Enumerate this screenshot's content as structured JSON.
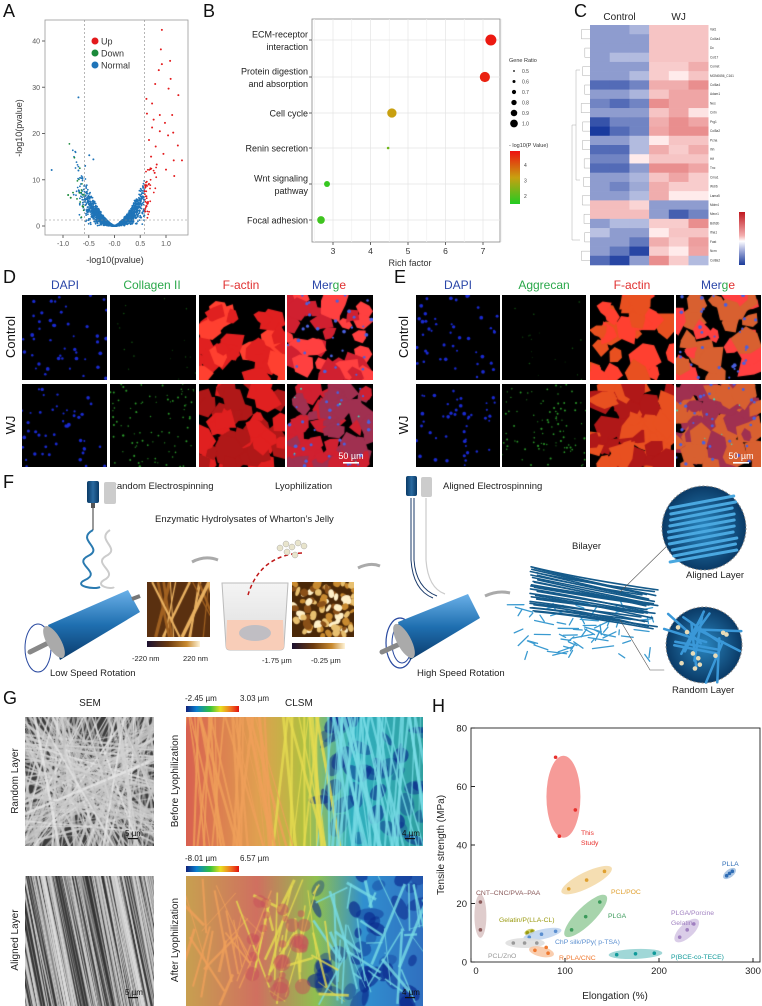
{
  "panel_labels": {
    "A": "A",
    "B": "B",
    "C": "C",
    "D": "D",
    "E": "E",
    "F": "F",
    "G": "G",
    "H": "H"
  },
  "panelD": {
    "headers": [
      "DAPI",
      "Collagen II",
      "F-actin"
    ],
    "merge_parts": [
      "Mer",
      "g",
      "e"
    ],
    "rows": [
      "Control",
      "WJ"
    ],
    "scale_bar": "50 µm"
  },
  "panelE": {
    "headers": [
      "DAPI",
      "Aggrecan",
      "F-actin"
    ],
    "merge_parts": [
      "Mer",
      "g",
      "e"
    ],
    "rows": [
      "Control",
      "WJ"
    ],
    "scale_bar": "50 µm"
  },
  "panelF": {
    "random_electrospinning": "Random Electrospinning",
    "lyophilization": "Lyophilization",
    "aligned_electrospinning": "Aligned Electrospinning",
    "enzymatic": "Enzymatic Hydrolysates of Wharton’s Jelly",
    "low_speed": "Low Speed Rotation",
    "high_speed": "High Speed Rotation",
    "afm1_min": "-220 nm",
    "afm1_max": "220 nm",
    "afm2_min": "-1.75 µm",
    "afm2_max": "-0.25 µm",
    "bilayer": "Bilayer",
    "aligned_layer": "Aligned Layer",
    "random_layer": "Random Layer"
  },
  "panelG": {
    "sem": "SEM",
    "clsm": "CLSM",
    "row_random": "Random Layer",
    "row_aligned": "Aligned Layer",
    "before": "Before Lyophilization",
    "after": "After Lyophilization",
    "before_min": "-2.45 µm",
    "before_max": "3.03 µm",
    "after_min": "-8.01 µm",
    "after_max": "6.57 µm",
    "sem_scale": "5 µm",
    "clsm_scale": "4 µm"
  },
  "colors": {
    "up": "#e31a1c",
    "down": "#1a8a3a",
    "normal": "#1f74b8",
    "dapi": "#2a46a8",
    "green": "#2aa84a",
    "red": "#e03030"
  },
  "chart_data": [
    {
      "id": "A",
      "type": "scatter",
      "title": "",
      "xlabel": "-log10(pvalue)",
      "ylabel": "-log10(pvalue)",
      "xlim": [
        -1.38,
        1.4
      ],
      "ylim": [
        -2,
        44
      ],
      "xticks": [
        -1.0,
        -0.5,
        0.0,
        0.5,
        1.0
      ],
      "xtick_labels": [
        "-1.0",
        "-0.5",
        "-0.0",
        "0.5",
        "1.0"
      ],
      "yticks": [
        0,
        10,
        20,
        30,
        40
      ],
      "ytick_labels": [
        "0",
        "10",
        "20",
        "30",
        "40"
      ],
      "thresholds": {
        "x": [
          -0.58,
          0.58
        ],
        "y": 1.3
      },
      "legend": [
        {
          "name": "Up",
          "color": "#e31a1c"
        },
        {
          "name": "Down",
          "color": "#1a8a3a"
        },
        {
          "name": "Normal",
          "color": "#1f74b8"
        }
      ],
      "legend_position": "top-center",
      "highlighted_points": [
        [
          0.92,
          42.4,
          "Up"
        ],
        [
          0.9,
          38.2,
          "Up"
        ],
        [
          0.92,
          35.0,
          "Up"
        ],
        [
          1.08,
          35.7,
          "Up"
        ],
        [
          0.86,
          33.7,
          "Up"
        ],
        [
          1.09,
          31.8,
          "Up"
        ],
        [
          0.79,
          30.7,
          "Up"
        ],
        [
          1.05,
          29.7,
          "Up"
        ],
        [
          1.24,
          28.3,
          "Up"
        ],
        [
          0.62,
          27.5,
          "Up"
        ],
        [
          0.73,
          26.5,
          "Up"
        ],
        [
          0.63,
          24.3,
          "Up"
        ],
        [
          0.88,
          24.0,
          "Up"
        ],
        [
          1.12,
          24.0,
          "Up"
        ],
        [
          0.76,
          23.0,
          "Up"
        ],
        [
          0.98,
          22.3,
          "Up"
        ],
        [
          0.73,
          21.3,
          "Up"
        ],
        [
          0.88,
          20.5,
          "Up"
        ],
        [
          1.04,
          19.6,
          "Up"
        ],
        [
          1.14,
          20.2,
          "Up"
        ],
        [
          0.67,
          18.6,
          "Up"
        ],
        [
          1.23,
          17.4,
          "Up"
        ],
        [
          0.8,
          17.2,
          "Up"
        ],
        [
          0.71,
          15.0,
          "Up"
        ],
        [
          0.95,
          15.6,
          "Up"
        ],
        [
          1.31,
          14.2,
          "Up"
        ],
        [
          1.15,
          14.2,
          "Up"
        ],
        [
          0.82,
          13.3,
          "Up"
        ],
        [
          1.0,
          12.2,
          "Up"
        ],
        [
          1.16,
          10.8,
          "Up"
        ],
        [
          0.78,
          11.5,
          "Up"
        ],
        [
          -0.7,
          27.8,
          "Normal"
        ],
        [
          -1.22,
          12.1,
          "Normal"
        ],
        [
          -0.7,
          12.0,
          "Normal"
        ],
        [
          -0.49,
          15.3,
          "Normal"
        ],
        [
          -0.41,
          14.4,
          "Normal"
        ],
        [
          -0.57,
          13.0,
          "Normal"
        ],
        [
          -0.9,
          6.7,
          "Down"
        ],
        [
          -0.85,
          6.1,
          "Down"
        ],
        [
          -0.68,
          7.2,
          "Down"
        ],
        [
          -0.62,
          4.3,
          "Down"
        ]
      ]
    },
    {
      "id": "B",
      "type": "scatter",
      "title": "",
      "xlabel": "Rich factor",
      "ylabel": "",
      "xlim": [
        2.45,
        7.45
      ],
      "xticks": [
        3,
        4,
        5,
        6,
        7
      ],
      "xtick_labels": [
        "3",
        "4",
        "5",
        "6",
        "7"
      ],
      "categories": [
        {
          "name": "ECM-receptor interaction",
          "lines": [
            "ECM-receptor",
            "interaction"
          ],
          "rich_factor": 7.21,
          "gene_ratio": 1.0,
          "neg_log10_p": 4.8
        },
        {
          "name": "Protein digestion and absorption",
          "lines": [
            "Protein digestion",
            "and absorption"
          ],
          "rich_factor": 7.05,
          "gene_ratio": 0.95,
          "neg_log10_p": 4.7
        },
        {
          "name": "Cell cycle",
          "lines": [
            "Cell cycle"
          ],
          "rich_factor": 4.57,
          "gene_ratio": 0.9,
          "neg_log10_p": 3.2
        },
        {
          "name": "Renin secretion",
          "lines": [
            "Renin secretion"
          ],
          "rich_factor": 4.47,
          "gene_ratio": 0.5,
          "neg_log10_p": 2.3
        },
        {
          "name": "Wnt signaling pathway",
          "lines": [
            "Wnt signaling",
            "pathway"
          ],
          "rich_factor": 2.84,
          "gene_ratio": 0.7,
          "neg_log10_p": 1.7
        },
        {
          "name": "Focal adhesion",
          "lines": [
            "Focal adhesion"
          ],
          "rich_factor": 2.68,
          "gene_ratio": 0.8,
          "neg_log10_p": 1.8
        }
      ],
      "size_legend": {
        "title": "Gene Ratio",
        "values": [
          0.5,
          0.6,
          0.7,
          0.8,
          0.9,
          1.0
        ],
        "labels": [
          "0.5",
          "0.6",
          "0.7",
          "0.8",
          "0.9",
          "1.0"
        ]
      },
      "color_legend": {
        "title": "- log10(P Value)",
        "ticks": [
          4,
          3,
          2
        ],
        "tick_labels": [
          "4",
          "3",
          "2"
        ],
        "range": [
          1.5,
          4.9
        ],
        "colors": [
          "#22cc22",
          "#c8a010",
          "#ee1111"
        ]
      },
      "grid": true,
      "legend_position": "right"
    },
    {
      "id": "C",
      "type": "heatmap",
      "groups": [
        "Control",
        "WJ"
      ],
      "columns_per_group": 3,
      "genes": [
        "Vat1",
        "Col4a4",
        "Dc",
        "Col17",
        "Comet",
        "MGN0656_C161",
        "Col6a4",
        "Adam1",
        "Nes",
        "Cntn",
        "Prg1",
        "Col5a2",
        "Pcna",
        "Ihh",
        "Hif",
        "Tnc",
        "Cma1",
        "Wdr6",
        "Lama5",
        "Mdm4",
        "Mecr1",
        "Bdh3b",
        "Ifna1",
        "Fast",
        "Ncrn",
        "Col8a2"
      ],
      "values": [
        [
          -1,
          -1,
          -0.6,
          0.5,
          0.5,
          0.5
        ],
        [
          -1,
          -1,
          -1,
          0.5,
          0.5,
          0.5
        ],
        [
          -1,
          -1,
          -1,
          0.5,
          0.5,
          0.5
        ],
        [
          -1,
          -0.5,
          -0.5,
          0.5,
          0.5,
          0.5
        ],
        [
          -1,
          -1,
          -1,
          0.4,
          0.4,
          0.8
        ],
        [
          -1,
          -1,
          -0.5,
          0.4,
          0,
          0.5
        ],
        [
          -1.8,
          -1.8,
          -1.4,
          0.8,
          0.8,
          1.2
        ],
        [
          -1,
          -1,
          -0.6,
          0.5,
          0.9,
          0.9
        ],
        [
          -1.4,
          -1.8,
          -1.4,
          1.2,
          0.9,
          0.9
        ],
        [
          -1,
          -1,
          -1,
          0.5,
          0.9,
          0.1
        ],
        [
          -2.2,
          -1.4,
          -1.4,
          0.8,
          1.2,
          0.9
        ],
        [
          -2.6,
          -1.8,
          -1.4,
          0.9,
          1.2,
          1.2
        ],
        [
          -1,
          -1,
          -0.5,
          0,
          0.5,
          0.5
        ],
        [
          -1.8,
          -1.8,
          -0.5,
          0.8,
          0.4,
          0.8
        ],
        [
          -1.4,
          -1.4,
          0,
          0.5,
          0.5,
          0.5
        ],
        [
          -1.8,
          -1.8,
          -1,
          1.2,
          1.2,
          0.9
        ],
        [
          -1,
          -1,
          -0.6,
          0.5,
          0.9,
          0.4
        ],
        [
          -1,
          -1.4,
          -0.8,
          0.8,
          0.4,
          0.4
        ],
        [
          -1,
          -1,
          -0.5,
          0.8,
          0,
          0
        ],
        [
          0.6,
          0.6,
          0.3,
          -1,
          -1,
          -1
        ],
        [
          0.6,
          0.6,
          0.6,
          -1,
          -2,
          -1.4
        ],
        [
          -1,
          -0.5,
          -0.5,
          0.4,
          0.4,
          1.2
        ],
        [
          -0.4,
          -1,
          -1,
          0,
          0.5,
          0.5
        ],
        [
          -1,
          -1,
          -1.6,
          0.8,
          0.4,
          1
        ],
        [
          -1,
          -1.6,
          -2.4,
          0.4,
          0,
          0.9
        ],
        [
          -1.8,
          -2.4,
          -1,
          1.2,
          0.4,
          -0.5
        ]
      ],
      "colors": {
        "high": "#d7191c",
        "mid": "#ffffff",
        "low": "#1a3a9a"
      }
    },
    {
      "id": "H",
      "type": "scatter",
      "title": "",
      "xlabel": "Elongation (%)",
      "ylabel": "Tensile strength (MPa)",
      "xlim": [
        0,
        300
      ],
      "ylim": [
        0,
        80
      ],
      "xticks": [
        0,
        100,
        200,
        300
      ],
      "xtick_labels": [
        "0",
        "100",
        "200",
        "300"
      ],
      "yticks": [
        0,
        20,
        40,
        60,
        80
      ],
      "ytick_labels": [
        "0",
        "20",
        "40",
        "60",
        "80"
      ],
      "series": [
        {
          "name": "This Study",
          "lines": [
            "This",
            "Study"
          ],
          "color": "#e8302c",
          "fill": "#f58a86",
          "points": [
            [
              90,
              70
            ],
            [
              111,
              52
            ],
            [
              94,
              43
            ]
          ]
        },
        {
          "name": "PCL/POC",
          "lines": [
            "PCL/POC"
          ],
          "color": "#e0a030",
          "fill": "#f3d8a4",
          "points": [
            [
              104,
              25
            ],
            [
              123,
              28
            ],
            [
              142,
              31
            ]
          ]
        },
        {
          "name": "PLGA",
          "lines": [
            "PLGA"
          ],
          "color": "#3a9a5a",
          "fill": "#98cc9e",
          "points": [
            [
              107,
              11
            ],
            [
              122,
              15.5
            ],
            [
              137,
              20.5
            ]
          ]
        },
        {
          "name": "PLLA",
          "lines": [
            "PLLA"
          ],
          "color": "#2f6db5",
          "fill": "#9dbde0",
          "points": [
            [
              272,
              29.5
            ],
            [
              275,
              30.3
            ],
            [
              278,
              31
            ]
          ]
        },
        {
          "name": "CNT–CNC/PVA–PAA",
          "lines": [
            "CNT–CNC/PVA–PAA"
          ],
          "color": "#8a5a5a",
          "fill": "#d9c3c3",
          "points": [
            [
              10,
              20.5
            ],
            [
              10,
              11
            ]
          ]
        },
        {
          "name": "Gelatin/P(LLA-CL)",
          "lines": [
            "Gelatin/P(LLA-CL)"
          ],
          "color": "#9a9a10",
          "fill": "#c8c850",
          "points": [
            [
              60,
              10
            ],
            [
              65,
              10.5
            ]
          ]
        },
        {
          "name": "ChP silk/PPy( p-TSA)",
          "lines": [
            "ChP silk/PPy( p-TSA)"
          ],
          "color": "#5b8fd0",
          "fill": "#bcd2ee",
          "points": [
            [
              62,
              8.5
            ],
            [
              75,
              9.5
            ],
            [
              90,
              10.5
            ]
          ]
        },
        {
          "name": "PCL/ZnO",
          "lines": [
            "PCL/ZnO"
          ],
          "color": "#999999",
          "fill": "#dddddd",
          "points": [
            [
              45,
              6.5
            ],
            [
              57,
              6.5
            ],
            [
              70,
              6.5
            ]
          ]
        },
        {
          "name": "R-PLA/CNC",
          "lines": [
            "R-PLA/CNC"
          ],
          "color": "#f07a30",
          "fill": "#f8c4a0",
          "points": [
            [
              68,
              4
            ],
            [
              80,
              5
            ],
            [
              82,
              3
            ]
          ]
        },
        {
          "name": "P(BCE-co-TECE)",
          "lines": [
            "P(BCE-co-TECE)"
          ],
          "color": "#109a9a",
          "fill": "#8fd0d0",
          "points": [
            [
              155,
              2.5
            ],
            [
              175,
              2.8
            ],
            [
              195,
              3
            ]
          ]
        },
        {
          "name": "PLGA/Porcine Gelatin",
          "lines": [
            "PLGA/Porcine",
            "Gelatin"
          ],
          "color": "#a080c0",
          "fill": "#d4c4e4",
          "points": [
            [
              222,
              8.5
            ],
            [
              230,
              11
            ],
            [
              237,
              13
            ]
          ]
        }
      ]
    }
  ]
}
